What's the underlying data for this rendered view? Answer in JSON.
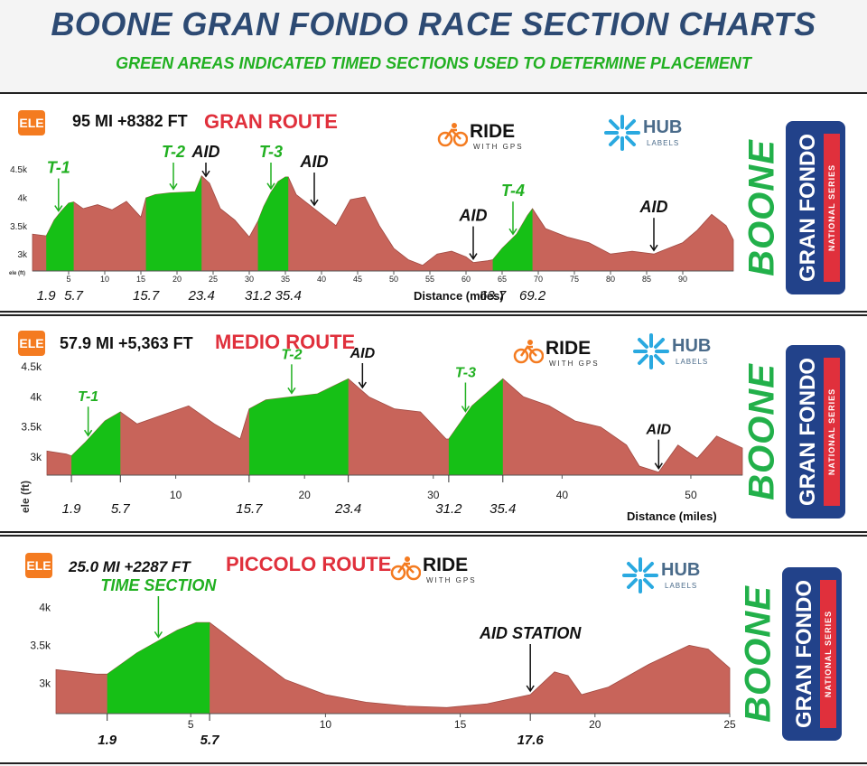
{
  "header": {
    "title": "BOONE GRAN FONDO  RACE SECTION CHARTS",
    "subtitle": "GREEN AREAS INDICATED TIMED SECTIONS USED TO DETERMINE PLACEMENT"
  },
  "branding": {
    "boone": "BOONE",
    "gran_fondo": "GRAN FONDO",
    "national_series": "NATIONAL SERIES",
    "ride_with_gps": "RIDE",
    "ride_with_gps_sub": "WITH GPS",
    "hub": "HUB",
    "hub_sub": "LABELS",
    "ele_badge": "ELE"
  },
  "colors": {
    "profile_fill": "#c8645a",
    "timed_fill": "#16c016",
    "route_name": "#e0303c",
    "green_label": "#21b021",
    "title_blue": "#2d4a73",
    "ele_orange": "#f47b20",
    "brand_navy": "#22428a"
  },
  "chart_data": [
    {
      "type": "area",
      "stat": "95 MI +8382 FT",
      "route_name": "GRAN ROUTE",
      "xlabel": "Distance (miles)",
      "ylabel": "ele (ft)",
      "xlim": [
        0,
        97
      ],
      "ylim": [
        2700,
        4550
      ],
      "x_ticks": [
        5,
        10,
        15,
        20,
        25,
        30,
        35,
        40,
        45,
        50,
        55,
        60,
        65,
        70,
        75,
        80,
        85,
        90
      ],
      "y_ticks": [
        {
          "v": 3000,
          "t": "3k"
        },
        {
          "v": 3500,
          "t": "3.5k"
        },
        {
          "v": 4000,
          "t": "4k"
        },
        {
          "v": 4500,
          "t": "4.5k"
        }
      ],
      "x": [
        0,
        1.9,
        3,
        4,
        5,
        5.7,
        7,
        9,
        11,
        13,
        15,
        15.7,
        17,
        19,
        21,
        22.5,
        23.4,
        24.5,
        26,
        28,
        30,
        31.2,
        32,
        33,
        34,
        35,
        35.4,
        36.5,
        38,
        40,
        42,
        44,
        46,
        48,
        50,
        52,
        54,
        56,
        58,
        60,
        61,
        63,
        63.7,
        65,
        67,
        68.5,
        69.2,
        71,
        74,
        77,
        80,
        83,
        86,
        88,
        90,
        92,
        94,
        96,
        97
      ],
      "y": [
        3350,
        3320,
        3600,
        3760,
        3900,
        3920,
        3800,
        3870,
        3780,
        3930,
        3650,
        3990,
        4050,
        4080,
        4090,
        4100,
        4380,
        4250,
        3800,
        3600,
        3300,
        3580,
        3840,
        4090,
        4280,
        4360,
        4360,
        4050,
        3900,
        3700,
        3500,
        3960,
        4010,
        3500,
        3100,
        2900,
        2800,
        3000,
        3050,
        2950,
        2850,
        2880,
        2900,
        3100,
        3350,
        3680,
        3800,
        3450,
        3300,
        3200,
        3000,
        3050,
        3000,
        3100,
        3200,
        3420,
        3700,
        3500,
        3250
      ],
      "timed": [
        [
          1.9,
          5.7
        ],
        [
          15.7,
          23.4
        ],
        [
          31.2,
          35.4
        ],
        [
          63.7,
          69.2
        ]
      ],
      "section_ticks": [
        "1.9",
        "5.7",
        "15.7",
        "23.4",
        "31.2",
        "35.4",
        "63.7",
        "69.2"
      ],
      "labels": [
        {
          "text": "T-1",
          "x": 3.6,
          "green": true
        },
        {
          "text": "T-2",
          "x": 19.5,
          "green": true
        },
        {
          "text": "AID",
          "x": 24.0,
          "green": false
        },
        {
          "text": "T-3",
          "x": 33.0,
          "green": true
        },
        {
          "text": "AID",
          "x": 39.0,
          "green": false
        },
        {
          "text": "AID",
          "x": 61.0,
          "green": false
        },
        {
          "text": "T-4",
          "x": 66.5,
          "green": true
        },
        {
          "text": "AID",
          "x": 86.0,
          "green": false
        }
      ]
    },
    {
      "type": "area",
      "stat": "57.9 MI +5,363 FT",
      "route_name": "MEDIO ROUTE",
      "xlabel": "Distance (miles)",
      "ylabel": "ele (ft)",
      "xlim": [
        0,
        54
      ],
      "ylim": [
        2700,
        4500
      ],
      "x_ticks": [
        10,
        20,
        30,
        40,
        50
      ],
      "y_ticks": [
        {
          "v": 3000,
          "t": "3k"
        },
        {
          "v": 3500,
          "t": "3.5k"
        },
        {
          "v": 4000,
          "t": "4k"
        },
        {
          "v": 4500,
          "t": "4.5k"
        }
      ],
      "x": [
        0,
        1.5,
        1.9,
        3,
        4.5,
        5.7,
        7,
        9,
        11,
        13,
        15,
        15.7,
        17,
        19,
        21,
        23.4,
        25,
        27,
        29,
        31,
        31.2,
        33,
        35.4,
        37,
        39,
        41,
        43,
        45,
        46,
        47.5,
        49,
        50.5,
        52,
        54
      ],
      "y": [
        3100,
        3050,
        3020,
        3250,
        3600,
        3750,
        3550,
        3700,
        3850,
        3550,
        3300,
        3800,
        3950,
        4000,
        4050,
        4300,
        4000,
        3800,
        3750,
        3300,
        3300,
        3850,
        4300,
        4000,
        3850,
        3600,
        3500,
        3200,
        2850,
        2750,
        3200,
        2980,
        3350,
        3150
      ],
      "timed": [
        [
          1.9,
          5.7
        ],
        [
          15.7,
          23.4
        ],
        [
          31.2,
          35.4
        ]
      ],
      "section_ticks": [
        "1.9",
        "5.7",
        "15.7",
        "23.4",
        "31.2",
        "35.4"
      ],
      "labels": [
        {
          "text": "T-1",
          "x": 3.2,
          "green": true
        },
        {
          "text": "T-2",
          "x": 19.0,
          "green": true
        },
        {
          "text": "AID",
          "x": 24.5,
          "green": false
        },
        {
          "text": "T-3",
          "x": 32.5,
          "green": true
        },
        {
          "text": "AID",
          "x": 47.5,
          "green": false
        }
      ]
    },
    {
      "type": "area",
      "stat": "25.0 MI +2287 FT",
      "route_name": "PICCOLO ROUTE",
      "xlabel": "",
      "ylabel": "",
      "xlim": [
        0,
        25
      ],
      "ylim": [
        2600,
        4100
      ],
      "x_ticks": [
        5,
        10,
        15,
        20,
        25
      ],
      "y_ticks": [
        {
          "v": 3000,
          "t": "3k"
        },
        {
          "v": 3500,
          "t": "3.5k"
        },
        {
          "v": 4000,
          "t": "4k"
        }
      ],
      "x": [
        0,
        1.5,
        1.9,
        3,
        4.5,
        5.2,
        5.7,
        7,
        8.5,
        10,
        11.5,
        13,
        14.5,
        16,
        17.6,
        18.5,
        19,
        19.5,
        20.5,
        22,
        23.5,
        24.2,
        25
      ],
      "y": [
        3180,
        3120,
        3120,
        3400,
        3700,
        3800,
        3800,
        3450,
        3050,
        2850,
        2750,
        2700,
        2680,
        2730,
        2850,
        3150,
        3100,
        2850,
        2950,
        3250,
        3500,
        3450,
        3200
      ],
      "timed": [
        [
          1.9,
          5.7
        ]
      ],
      "section_ticks": [
        "1.9",
        "5.7",
        "17.6"
      ],
      "labels": [
        {
          "text": "TIME  SECTION",
          "x": 3.8,
          "green": true
        },
        {
          "text": "AID STATION",
          "x": 17.6,
          "green": false
        }
      ]
    }
  ]
}
